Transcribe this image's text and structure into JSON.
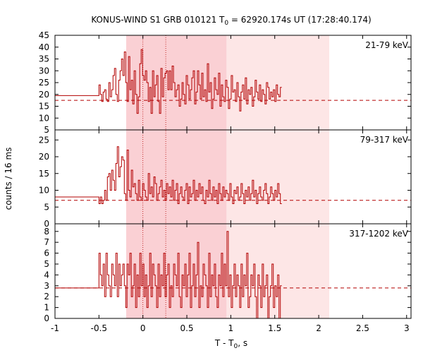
{
  "chart_data": {
    "type": "line",
    "title": "KONUS-WIND S1 GRB 010121 T",
    "title_sub": "0",
    "title_rest": " = 62920.174s UT (17:28:40.174)",
    "xlabel": "T - T",
    "xlabel_sub": "0",
    "xlabel_rest": ", s",
    "ylabel": "counts / 16 ms",
    "xlim": [
      -1,
      3.05
    ],
    "x_ticks": [
      -1,
      -0.5,
      0,
      0.5,
      1,
      1.5,
      2,
      2.5,
      3
    ],
    "x_tick_labels": [
      "-1",
      "-0.5",
      "0",
      "0.5",
      "1",
      "1.5",
      "2",
      "2.5",
      "3"
    ],
    "shaded_regions": [
      {
        "from": -0.19,
        "to": 2.12,
        "color": "#fde6e6"
      },
      {
        "from": -0.19,
        "to": 0.95,
        "color": "#fad0d4"
      }
    ],
    "vertical_markers": [
      0.0,
      0.26
    ],
    "colors": {
      "data": "#b30000",
      "shade_light": "#fde6e6",
      "shade_dark": "#fad0d4",
      "marker": "#b30000"
    },
    "panels": [
      {
        "label": "21-79 keV",
        "ylim": [
          5,
          45
        ],
        "y_ticks": [
          5,
          10,
          15,
          20,
          25,
          30,
          35,
          40,
          45
        ],
        "y_tick_labels": [
          "5",
          "10",
          "15",
          "20",
          "25",
          "30",
          "35",
          "40",
          "45"
        ],
        "background": 17.5,
        "pre_level": 19.5,
        "step_start": -0.5,
        "bin_width": 0.016,
        "values": [
          24,
          20,
          17,
          21,
          22,
          18,
          17,
          25,
          19,
          22,
          28,
          31,
          20,
          17,
          26,
          30,
          35,
          28,
          38,
          25,
          17,
          36,
          22,
          26,
          16,
          30,
          20,
          12,
          19,
          33,
          39,
          28,
          26,
          30,
          25,
          17,
          23,
          12,
          30,
          19,
          24,
          28,
          17,
          12,
          31,
          19,
          27,
          29,
          30,
          22,
          30,
          22,
          32,
          25,
          19,
          22,
          24,
          15,
          18,
          25,
          20,
          16,
          28,
          24,
          18,
          22,
          27,
          30,
          16,
          21,
          30,
          24,
          18,
          29,
          19,
          22,
          17,
          33,
          21,
          25,
          14,
          18,
          27,
          22,
          20,
          29,
          15,
          24,
          19,
          17,
          26,
          23,
          14,
          18,
          28,
          21,
          22,
          17,
          25,
          19,
          13,
          21,
          24,
          18,
          27,
          16,
          22,
          20,
          23,
          15,
          19,
          26,
          21,
          18,
          24,
          17,
          22,
          20,
          16,
          25,
          23,
          18,
          21,
          19,
          22,
          17,
          24,
          20,
          19,
          23
        ]
      },
      {
        "label": "79-317 keV",
        "ylim": [
          0,
          28
        ],
        "y_ticks": [
          0,
          5,
          10,
          15,
          20,
          25
        ],
        "y_tick_labels": [
          "0",
          "5",
          "10",
          "15",
          "20",
          "25"
        ],
        "background": 7,
        "pre_level": 8,
        "step_start": -0.5,
        "bin_width": 0.016,
        "values": [
          6,
          8,
          6,
          7,
          10,
          7,
          14,
          15,
          10,
          16,
          13,
          10,
          18,
          23,
          14,
          17,
          20,
          19,
          9,
          7,
          22,
          10,
          8,
          16,
          11,
          12,
          9,
          7,
          13,
          8,
          7,
          12,
          10,
          8,
          7,
          15,
          9,
          11,
          8,
          14,
          12,
          7,
          9,
          11,
          13,
          8,
          10,
          7,
          12,
          9,
          11,
          8,
          13,
          7,
          10,
          12,
          6,
          9,
          11,
          8,
          7,
          10,
          12,
          6,
          11,
          8,
          9,
          13,
          7,
          10,
          8,
          12,
          9,
          11,
          7,
          6,
          10,
          8,
          13,
          9,
          7,
          11,
          8,
          10,
          6,
          12,
          9,
          7,
          11,
          8,
          10,
          9,
          7,
          12,
          8,
          6,
          10,
          9,
          11,
          7,
          8,
          12,
          9,
          6,
          10,
          8,
          11,
          7,
          9,
          13,
          8,
          10,
          6,
          9,
          11,
          8,
          7,
          10,
          12,
          9,
          6,
          8,
          11,
          9,
          7,
          10,
          8,
          12,
          9,
          6
        ]
      },
      {
        "label": "317-1202 keV",
        "ylim": [
          0,
          8.7
        ],
        "y_ticks": [
          0,
          1,
          2,
          3,
          4,
          5,
          6,
          7,
          8
        ],
        "y_tick_labels": [
          "0",
          "1",
          "2",
          "3",
          "4",
          "5",
          "6",
          "7",
          "8"
        ],
        "background": 2.8,
        "pre_level": 2.8,
        "step_start": -0.5,
        "bin_width": 0.016,
        "values": [
          6,
          4,
          3,
          5,
          2,
          6,
          4,
          3,
          2,
          5,
          4,
          3,
          6,
          2,
          5,
          3,
          4,
          5,
          3,
          1,
          5,
          4,
          6,
          2,
          3,
          5,
          1,
          4,
          2,
          6,
          3,
          5,
          2,
          4,
          1,
          3,
          6,
          2,
          5,
          4,
          3,
          1,
          5,
          2,
          4,
          3,
          6,
          2,
          4,
          5,
          1,
          3,
          2,
          5,
          4,
          3,
          6,
          2,
          1,
          4,
          3,
          5,
          2,
          4,
          6,
          1,
          3,
          5,
          2,
          4,
          7,
          1,
          3,
          2,
          5,
          4,
          3,
          1,
          6,
          2,
          4,
          3,
          5,
          2,
          1,
          4,
          3,
          6,
          2,
          5,
          3,
          8,
          2,
          4,
          1,
          3,
          5,
          2,
          4,
          3,
          1,
          5,
          2,
          4,
          3,
          6,
          1,
          2,
          4,
          3,
          5,
          2,
          0,
          4,
          3,
          1,
          5,
          2,
          3,
          4,
          0,
          2,
          3,
          5,
          1,
          3,
          2,
          4,
          0,
          3
        ]
      }
    ]
  }
}
